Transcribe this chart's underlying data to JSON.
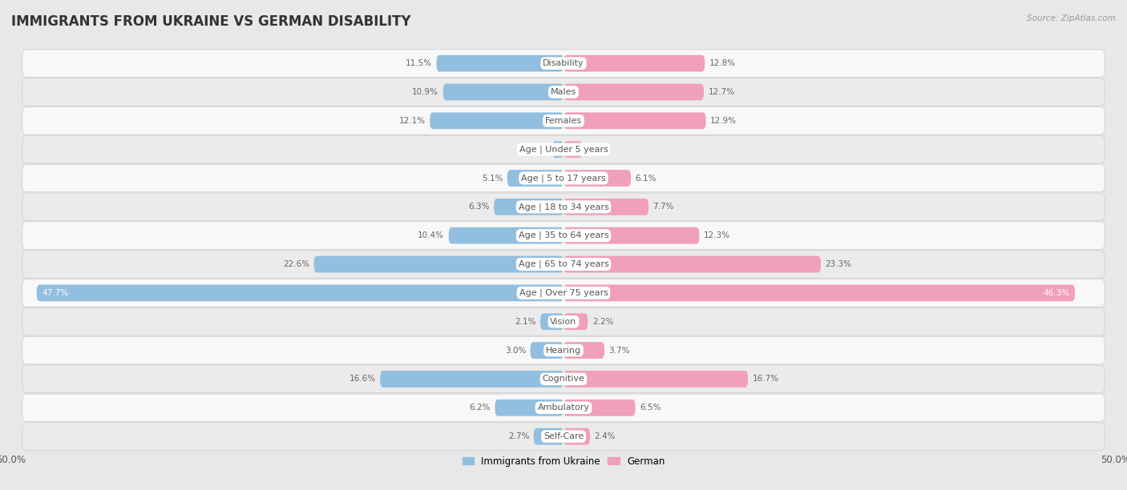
{
  "title": "IMMIGRANTS FROM UKRAINE VS GERMAN DISABILITY",
  "source": "Source: ZipAtlas.com",
  "categories": [
    "Disability",
    "Males",
    "Females",
    "Age | Under 5 years",
    "Age | 5 to 17 years",
    "Age | 18 to 34 years",
    "Age | 35 to 64 years",
    "Age | 65 to 74 years",
    "Age | Over 75 years",
    "Vision",
    "Hearing",
    "Cognitive",
    "Ambulatory",
    "Self-Care"
  ],
  "ukraine_values": [
    11.5,
    10.9,
    12.1,
    1.0,
    5.1,
    6.3,
    10.4,
    22.6,
    47.7,
    2.1,
    3.0,
    16.6,
    6.2,
    2.7
  ],
  "german_values": [
    12.8,
    12.7,
    12.9,
    1.7,
    6.1,
    7.7,
    12.3,
    23.3,
    46.3,
    2.2,
    3.7,
    16.7,
    6.5,
    2.4
  ],
  "ukraine_color": "#92BEE0",
  "german_color": "#F0A0B8",
  "ukraine_label": "Immigrants from Ukraine",
  "german_label": "German",
  "axis_limit": 50.0,
  "bar_height": 0.58,
  "background_color": "#f0f0f0",
  "row_color_odd": "#f8f8f8",
  "row_color_even": "#ebebeb",
  "title_fontsize": 12,
  "label_fontsize": 8.0,
  "value_fontsize": 7.5
}
